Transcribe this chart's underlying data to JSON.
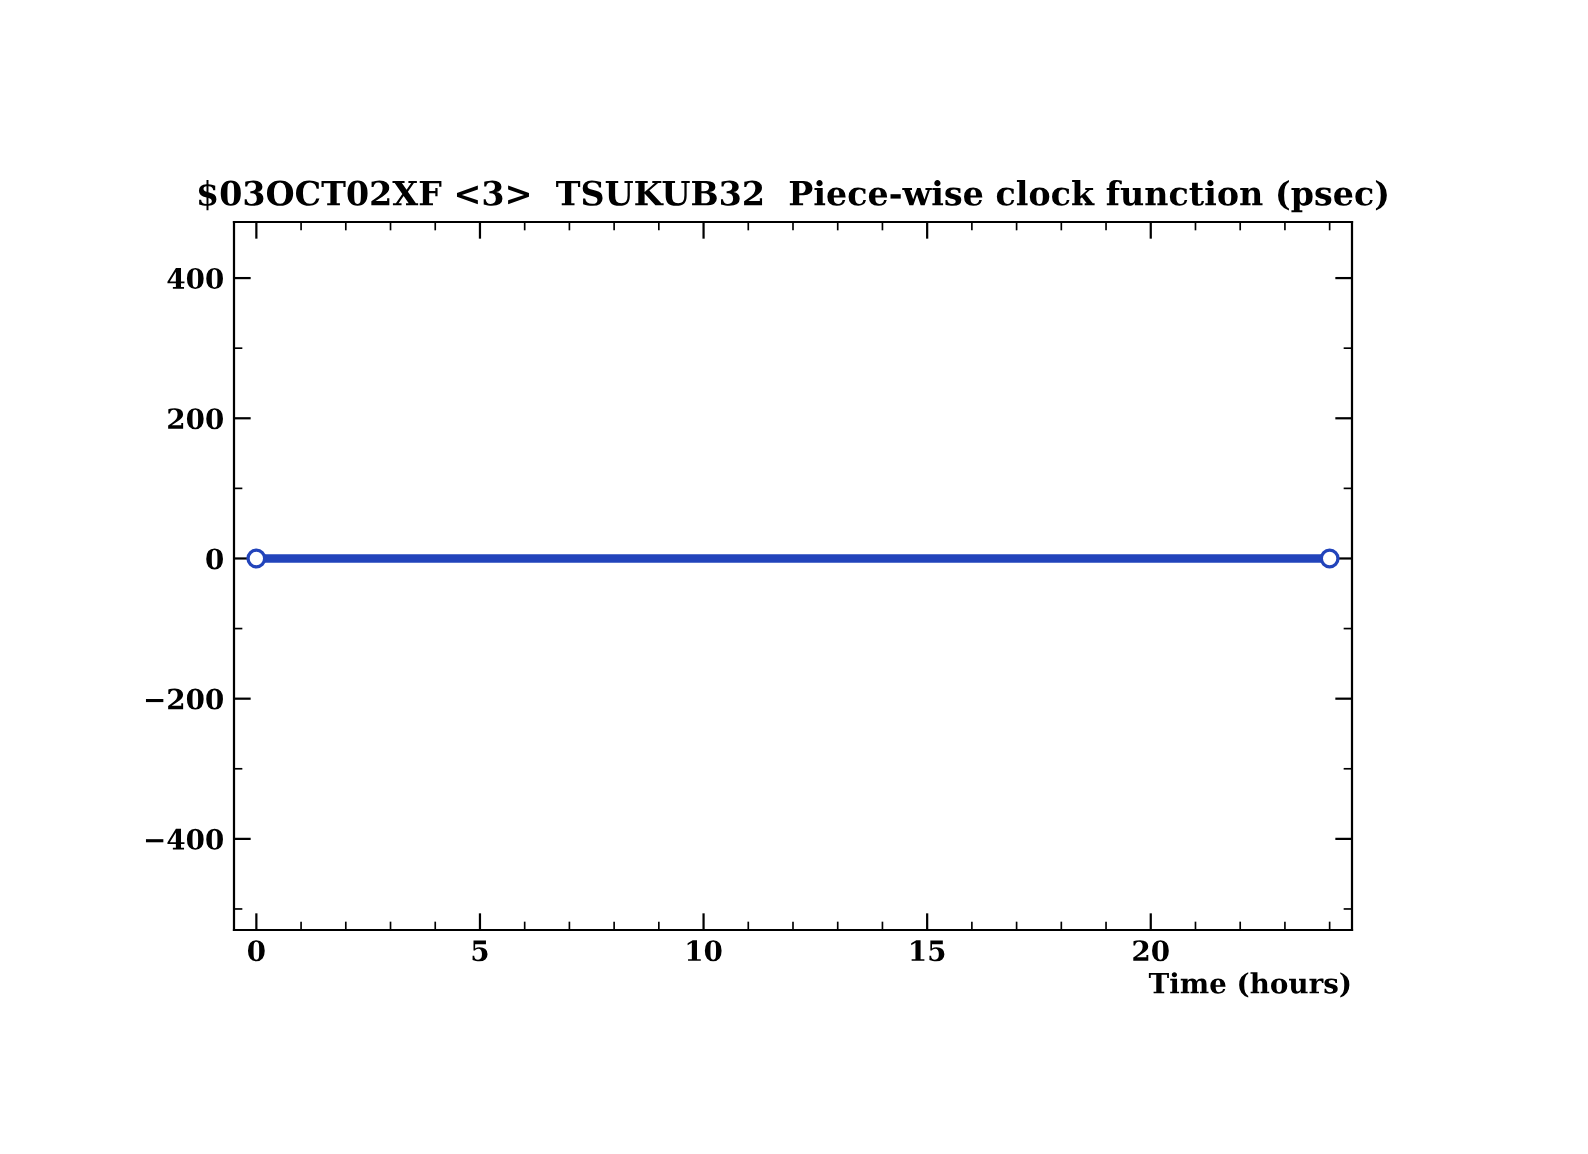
{
  "chart_data": {
    "type": "line",
    "title": "$03OCT02XF <3>  TSUKUB32  Piece-wise clock function (psec)",
    "xlabel": "Time (hours)",
    "series": [
      {
        "x": [
          0,
          24.0
        ],
        "values": [
          0,
          0
        ],
        "color": "#2244bb"
      }
    ],
    "xlim": [
      -0.5,
      24.5
    ],
    "ylim": [
      -530,
      480
    ],
    "xticks": [
      0,
      5,
      10,
      15,
      20
    ],
    "yticks": [
      -400,
      -200,
      0,
      200,
      400
    ],
    "marker": "circle",
    "line_style": "solid",
    "grid": false,
    "legend": false
  }
}
